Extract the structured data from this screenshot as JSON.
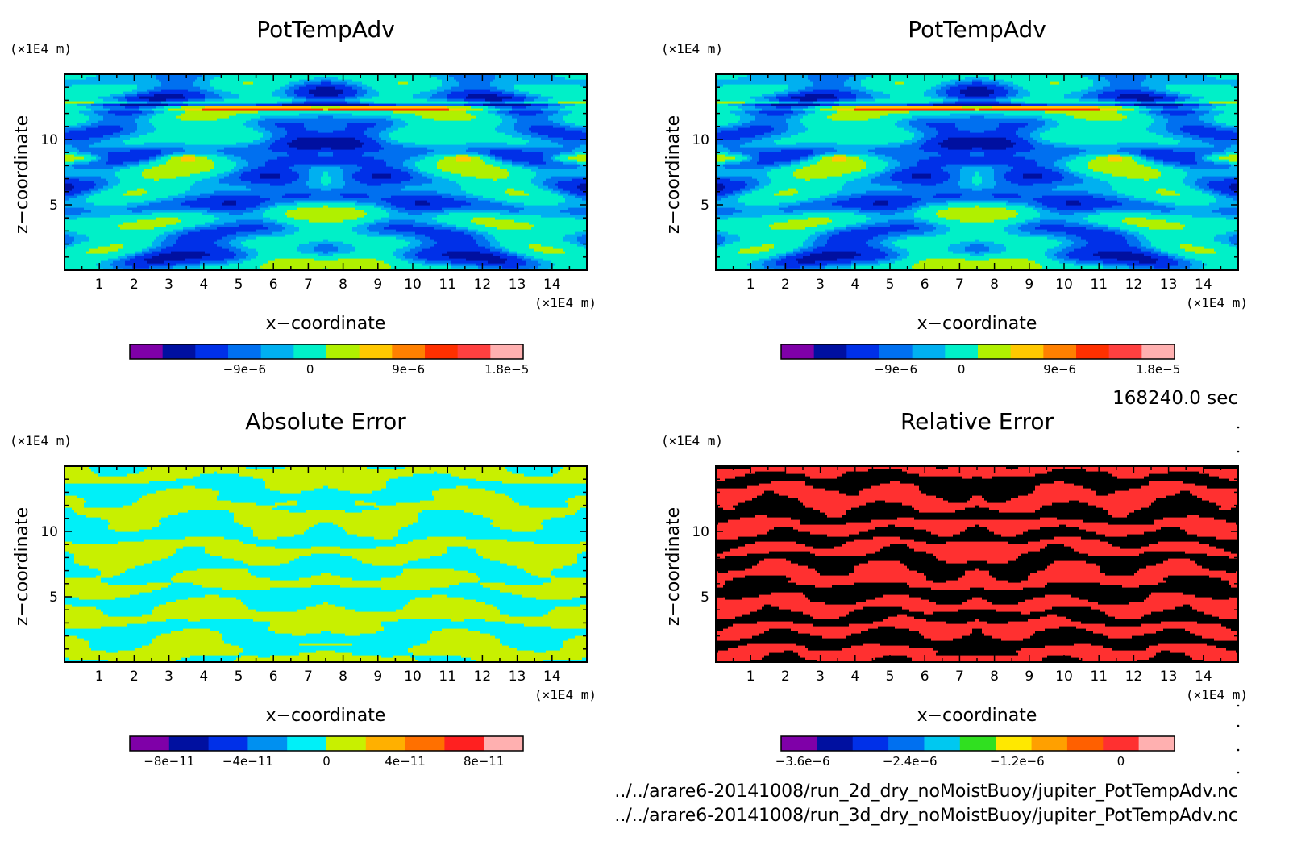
{
  "timestamp": "168240.0 sec",
  "source_files": [
    "../../arare6-20141008/run_2d_dry_noMoistBuoy/jupiter_PotTempAdv.nc",
    "../../arare6-20141008/run_3d_dry_noMoistBuoy/jupiter_PotTempAdv.nc"
  ],
  "chart_data": [
    {
      "type": "heatmap",
      "title": "PotTempAdv",
      "xlabel": "x−coordinate",
      "ylabel": "z−coordinate",
      "x_unit": "(×1E4 m)",
      "y_unit": "(×1E4 m)",
      "xlim": [
        0,
        15
      ],
      "ylim": [
        0,
        15
      ],
      "x_ticks": [
        "1",
        "2",
        "3",
        "4",
        "5",
        "6",
        "7",
        "8",
        "9",
        "10",
        "11",
        "12",
        "13",
        "14"
      ],
      "y_ticks": [
        "5",
        "10"
      ],
      "pattern": "field",
      "colorbar": {
        "colors": [
          "#7f00a8",
          "#0010a0",
          "#0030e8",
          "#0070f0",
          "#00b0f0",
          "#00f0c8",
          "#b0f000",
          "#ffc800",
          "#ff8000",
          "#ff3000",
          "#ff4040",
          "#ffb0b0"
        ],
        "tick_labels": [
          "−9e−6",
          "0",
          "9e−6",
          "1.8e−5"
        ]
      }
    },
    {
      "type": "heatmap",
      "title": "PotTempAdv",
      "xlabel": "x−coordinate",
      "ylabel": "z−coordinate",
      "x_unit": "(×1E4 m)",
      "y_unit": "(×1E4 m)",
      "xlim": [
        0,
        15
      ],
      "ylim": [
        0,
        15
      ],
      "x_ticks": [
        "1",
        "2",
        "3",
        "4",
        "5",
        "6",
        "7",
        "8",
        "9",
        "10",
        "11",
        "12",
        "13",
        "14"
      ],
      "y_ticks": [
        "5",
        "10"
      ],
      "pattern": "field",
      "colorbar": {
        "colors": [
          "#7f00a8",
          "#0010a0",
          "#0030e8",
          "#0070f0",
          "#00b0f0",
          "#00f0c8",
          "#b0f000",
          "#ffc800",
          "#ff8000",
          "#ff3000",
          "#ff4040",
          "#ffb0b0"
        ],
        "tick_labels": [
          "−9e−6",
          "0",
          "9e−6",
          "1.8e−5"
        ]
      }
    },
    {
      "type": "heatmap",
      "title": "Absolute Error",
      "xlabel": "x−coordinate",
      "ylabel": "z−coordinate",
      "x_unit": "(×1E4 m)",
      "y_unit": "(×1E4 m)",
      "xlim": [
        0,
        15
      ],
      "ylim": [
        0,
        15
      ],
      "x_ticks": [
        "1",
        "2",
        "3",
        "4",
        "5",
        "6",
        "7",
        "8",
        "9",
        "10",
        "11",
        "12",
        "13",
        "14"
      ],
      "y_ticks": [
        "5",
        "10"
      ],
      "pattern": "abs",
      "colorbar": {
        "colors": [
          "#7f00a8",
          "#0010a0",
          "#0030e8",
          "#0090f0",
          "#00f0f8",
          "#c8f000",
          "#ffb000",
          "#ff7000",
          "#ff2020",
          "#ffb0b0"
        ],
        "tick_labels": [
          "−8e−11",
          "−4e−11",
          "0",
          "4e−11",
          "8e−11"
        ]
      }
    },
    {
      "type": "heatmap",
      "title": "Relative Error",
      "xlabel": "x−coordinate",
      "ylabel": "z−coordinate",
      "x_unit": "(×1E4 m)",
      "y_unit": "(×1E4 m)",
      "xlim": [
        0,
        15
      ],
      "ylim": [
        0,
        15
      ],
      "x_ticks": [
        "1",
        "2",
        "3",
        "4",
        "5",
        "6",
        "7",
        "8",
        "9",
        "10",
        "11",
        "12",
        "13",
        "14"
      ],
      "y_ticks": [
        "5",
        "10"
      ],
      "pattern": "rel",
      "colorbar": {
        "colors": [
          "#7f00a8",
          "#0010a0",
          "#0030e8",
          "#0070f0",
          "#00c8f0",
          "#30e020",
          "#ffe800",
          "#ffa000",
          "#ff6000",
          "#ff3030",
          "#ffb0b0"
        ],
        "tick_labels": [
          "−3.6e−6",
          "−2.4e−6",
          "−1.2e−6",
          "0"
        ]
      }
    }
  ]
}
